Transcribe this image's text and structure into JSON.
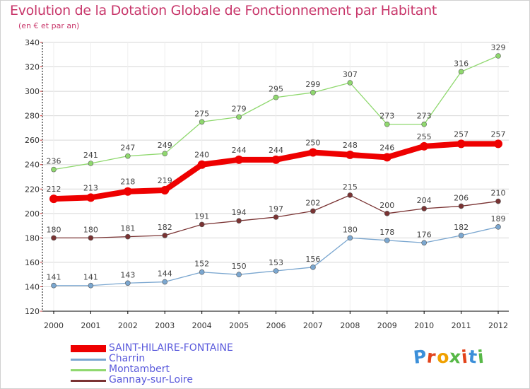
{
  "title": "Evolution de la Dotation Globale de Fonctionnement par Habitant",
  "subtitle": "(en € et par an)",
  "logo_text": "Proxiti",
  "colors": {
    "title": "#c8366a",
    "legend_text": "#5a5adc",
    "grid": "#d7d7d7",
    "axis": "#000000"
  },
  "chart_data": {
    "type": "line",
    "title": "Evolution de la Dotation Globale de Fonctionnement par Habitant",
    "subtitle": "(en € et par an)",
    "x": [
      "2000",
      "2001",
      "2002",
      "2003",
      "2004",
      "2005",
      "2006",
      "2007",
      "2008",
      "2009",
      "2010",
      "2011",
      "2012"
    ],
    "ylim": [
      120,
      340
    ],
    "yticks": [
      120,
      140,
      160,
      180,
      200,
      220,
      240,
      260,
      280,
      300,
      320,
      340
    ],
    "grid": "horizontal",
    "legend_position": "bottom-left",
    "series": [
      {
        "name": "SAINT-HILAIRE-FONTAINE",
        "color": "#ee0000",
        "width": 8,
        "marker": 6,
        "values": [
          212,
          213,
          218,
          219,
          240,
          244,
          244,
          250,
          248,
          246,
          255,
          257,
          257
        ]
      },
      {
        "name": "Charrin",
        "color": "#7ba7d0",
        "width": 1.3,
        "marker": 3.5,
        "values": [
          141,
          141,
          143,
          144,
          152,
          150,
          153,
          156,
          180,
          178,
          176,
          182,
          189
        ]
      },
      {
        "name": "Montambert",
        "color": "#8fd86e",
        "width": 1.3,
        "marker": 3.5,
        "values": [
          236,
          241,
          247,
          249,
          275,
          279,
          295,
          299,
          307,
          273,
          273,
          316,
          329
        ]
      },
      {
        "name": "Gannay-sur-Loire",
        "color": "#7a3333",
        "width": 1.3,
        "marker": 3.5,
        "values": [
          180,
          180,
          181,
          182,
          191,
          194,
          197,
          202,
          215,
          200,
          204,
          206,
          210
        ]
      }
    ]
  }
}
